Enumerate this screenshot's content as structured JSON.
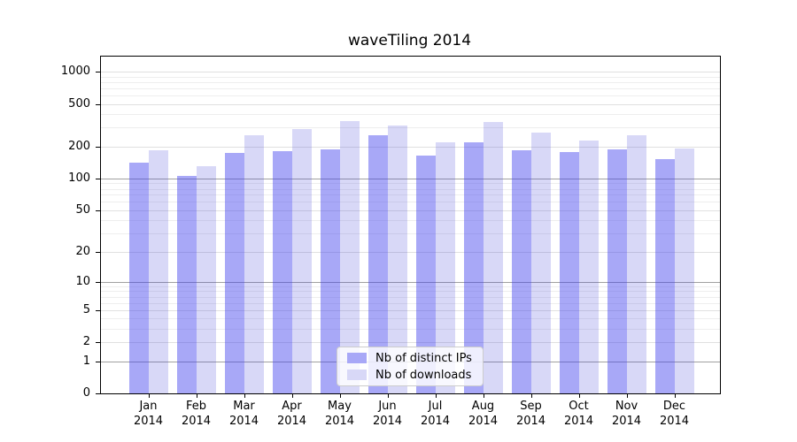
{
  "title": "waveTiling 2014",
  "legend": {
    "items": [
      {
        "label": "Nb of distinct IPs",
        "color": "#a8a8f7",
        "fill": "rgba(62,62,238,0.45)"
      },
      {
        "label": "Nb of downloads",
        "color": "#d8d8f7",
        "fill": "rgba(60,60,215,0.20)"
      }
    ]
  },
  "chart_data": {
    "type": "bar",
    "title": "waveTiling 2014",
    "categories": [
      "Jan 2014",
      "Feb 2014",
      "Mar 2014",
      "Apr 2014",
      "May 2014",
      "Jun 2014",
      "Jul 2014",
      "Aug 2014",
      "Sep 2014",
      "Oct 2014",
      "Nov 2014",
      "Dec 2014"
    ],
    "series": [
      {
        "name": "Nb of distinct IPs",
        "color": "#a8a8f7",
        "values": [
          140,
          106,
          173,
          181,
          186,
          256,
          163,
          217,
          185,
          176,
          186,
          152
        ]
      },
      {
        "name": "Nb of downloads",
        "color": "#d8d8f7",
        "values": [
          185,
          130,
          256,
          289,
          345,
          312,
          219,
          340,
          272,
          226,
          255,
          190
        ]
      }
    ],
    "xlabel": "",
    "ylabel": "",
    "yscale": "log1p",
    "yticks": [
      0,
      1,
      2,
      5,
      10,
      20,
      50,
      100,
      200,
      500,
      1000
    ],
    "minor_gridlines": [
      3,
      4,
      6,
      7,
      8,
      9,
      30,
      40,
      60,
      70,
      80,
      90,
      300,
      400,
      600,
      700,
      800,
      900
    ],
    "major_gridlines": [
      1,
      10,
      100
    ],
    "ylim": [
      0,
      1400
    ],
    "grid": true,
    "legend_position": "inside bottom-center"
  }
}
